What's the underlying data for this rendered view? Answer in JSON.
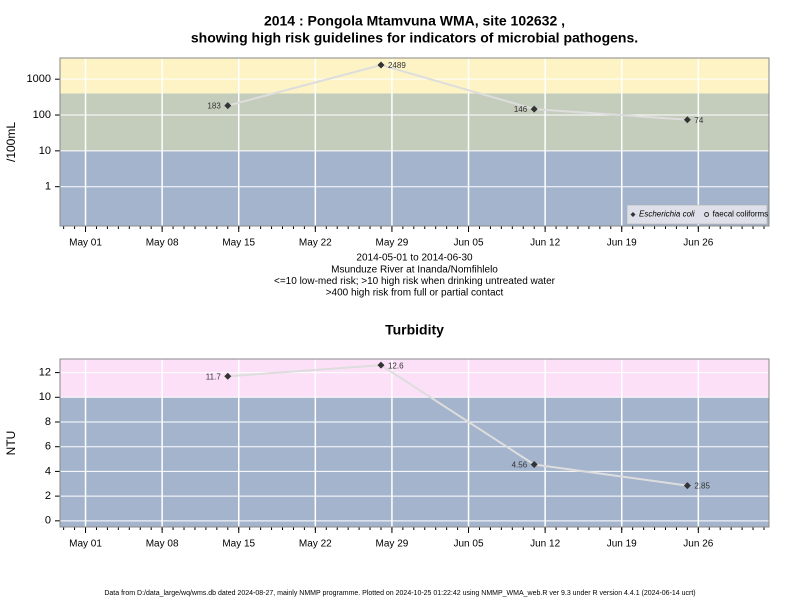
{
  "chart_data": [
    {
      "type": "line",
      "title": [
        "2014 : Pongola Mtamvuna WMA, site 102632 ,",
        "showing high risk guidelines for indicators of microbial pathogens."
      ],
      "notes": [
        "2014-05-01 to 2014-06-30",
        "Msunduze River at Inanda/Nomfihlelo",
        "<=10 low-med risk; >10 high risk when drinking untreated water",
        ">400 high risk from full or partial contact"
      ],
      "y_label": "/100mL",
      "log_y": true,
      "x": [
        "2014-05-14",
        "2014-05-28",
        "2014-06-11",
        "2014-06-25"
      ],
      "series": [
        {
          "name": "Escherichia coli",
          "color": "#333333",
          "marker": "diamond",
          "values": [
            183,
            2489,
            146,
            74
          ]
        },
        {
          "name": "faecal coliforms",
          "color": "#333333",
          "marker": "circle",
          "values": [
            null,
            null,
            null,
            null
          ]
        }
      ],
      "line_color": "#dddddd",
      "thresholds": [
        10,
        400
      ],
      "band_colors": [
        "#a3b4cc",
        "#c4ccbc",
        "#fdf3c4"
      ],
      "xlim": [
        "2014-04-28T16:00",
        "2014-07-02T11:00"
      ],
      "xticks": [
        {
          "value": "2014-05-01",
          "label": "May 01"
        },
        {
          "value": "2014-05-08",
          "label": "May 08"
        },
        {
          "value": "2014-05-15",
          "label": "May 15"
        },
        {
          "value": "2014-05-22",
          "label": "May 22"
        },
        {
          "value": "2014-05-29",
          "label": "May 29"
        },
        {
          "value": "2014-06-05",
          "label": "Jun 05"
        },
        {
          "value": "2014-06-12",
          "label": "Jun 12"
        },
        {
          "value": "2014-06-19",
          "label": "Jun 19"
        },
        {
          "value": "2014-06-26",
          "label": "Jun 26"
        }
      ],
      "ylim": [
        0.08,
        3900
      ],
      "yticks": [
        1,
        10,
        100,
        1000
      ],
      "grid": true,
      "legend": "bottom-right"
    },
    {
      "type": "line",
      "title": [
        "Turbidity"
      ],
      "y_label": "NTU",
      "log_y": false,
      "x": [
        "2014-05-14",
        "2014-05-28",
        "2014-06-11",
        "2014-06-25"
      ],
      "series": [
        {
          "name": null,
          "color": "#333333",
          "marker": "diamond",
          "values": [
            11.7,
            12.6,
            4.56,
            2.85
          ]
        }
      ],
      "line_color": "#dddddd",
      "thresholds": [
        10
      ],
      "band_colors": [
        "#a3b4cc",
        "#fce0f8"
      ],
      "xlim": [
        "2014-04-28T16:00",
        "2014-07-02T11:00"
      ],
      "xticks": [
        {
          "value": "2014-05-01",
          "label": "May 01"
        },
        {
          "value": "2014-05-08",
          "label": "May 08"
        },
        {
          "value": "2014-05-15",
          "label": "May 15"
        },
        {
          "value": "2014-05-22",
          "label": "May 22"
        },
        {
          "value": "2014-05-29",
          "label": "May 29"
        },
        {
          "value": "2014-06-05",
          "label": "Jun 05"
        },
        {
          "value": "2014-06-12",
          "label": "Jun 12"
        },
        {
          "value": "2014-06-19",
          "label": "Jun 19"
        },
        {
          "value": "2014-06-26",
          "label": "Jun 26"
        }
      ],
      "ylim": [
        -0.5,
        13.1
      ],
      "yticks": [
        0,
        2,
        4,
        6,
        8,
        10,
        12
      ],
      "grid": true
    }
  ],
  "footer": "Data from D:/data_large/wq/wms.db dated 2024-08-27, mainly NMMP programme. Plotted on 2024-10-25 01:22:42 using NMMP_WMA_web.R ver 9.3 under R version 4.4.1 (2024-06-14 ucrt)"
}
